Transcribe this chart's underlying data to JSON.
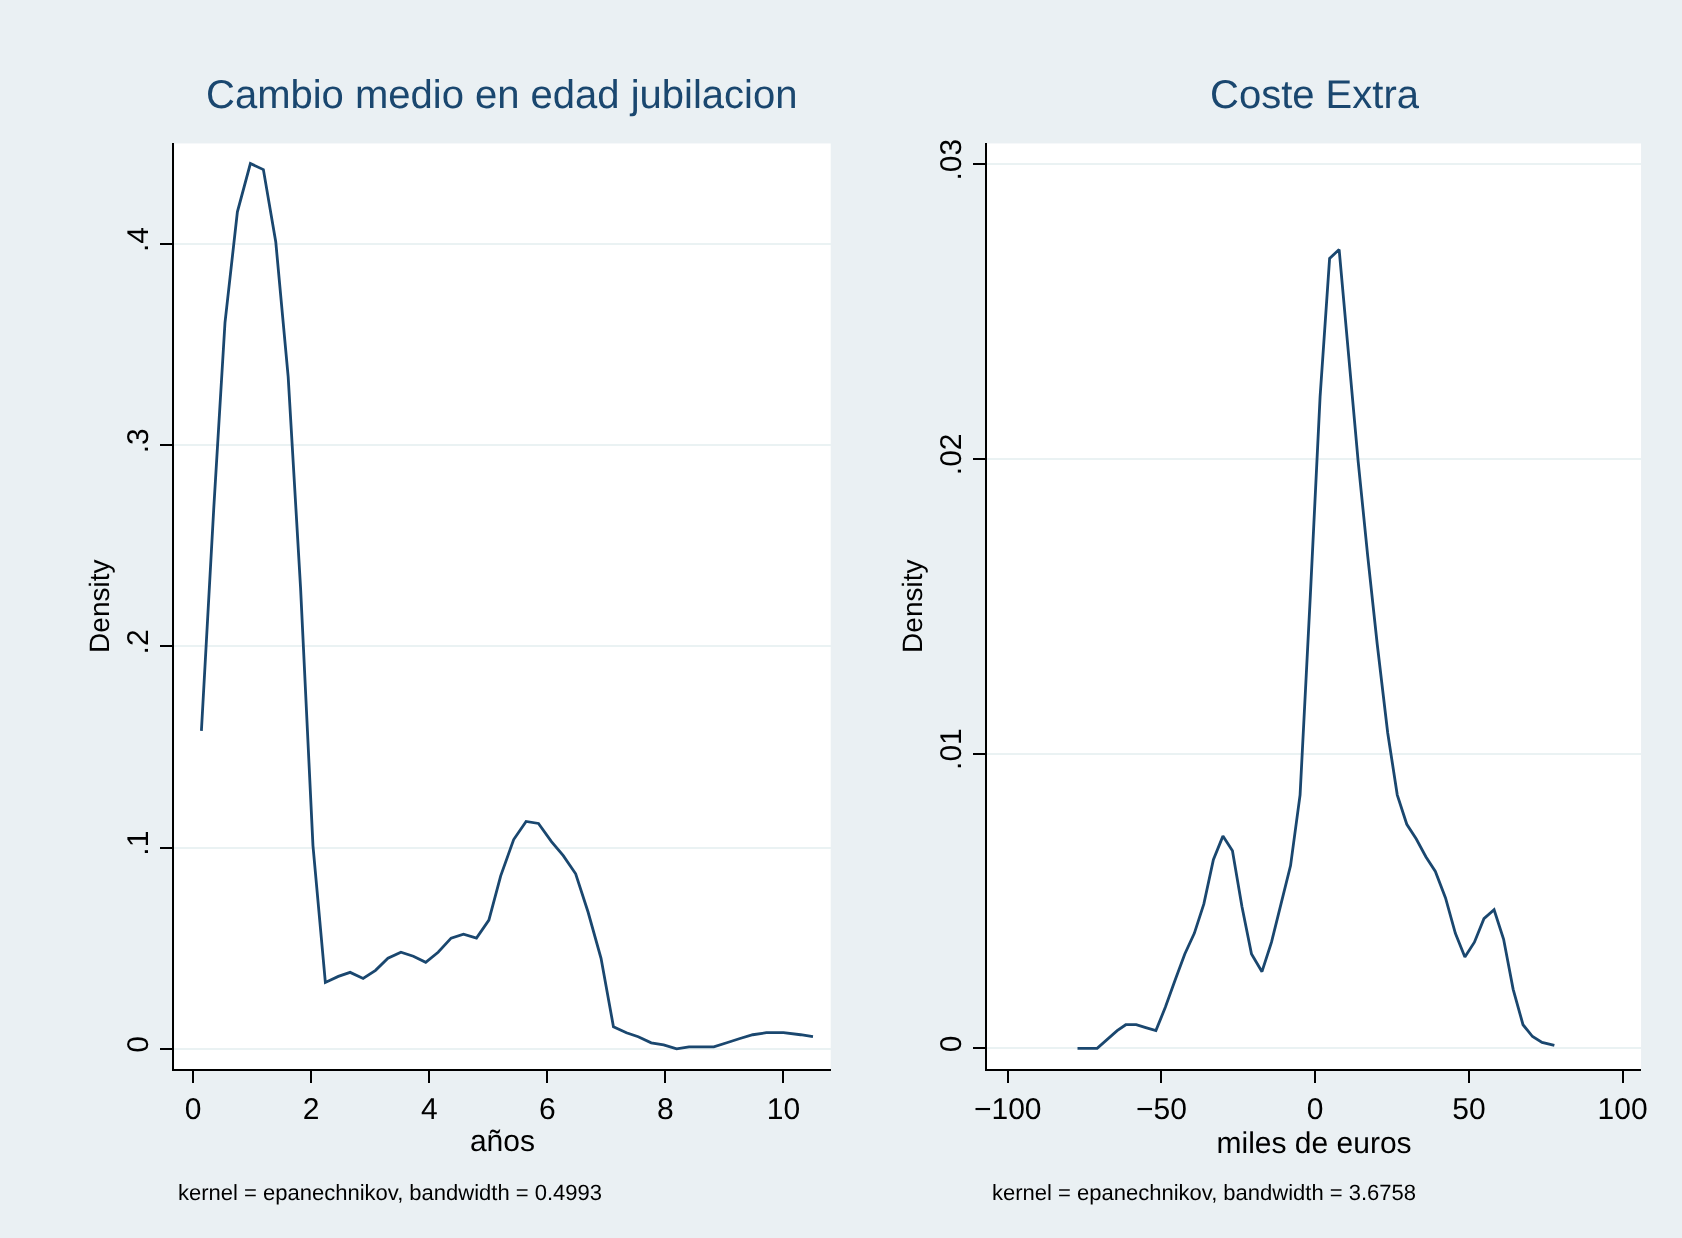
{
  "chart_data": [
    {
      "type": "line",
      "title": "Cambio medio en edad jubilacion",
      "xlabel": "años",
      "ylabel": "Density",
      "annotations": [
        "kernel = epanechnikov, bandwidth = 0.4993"
      ],
      "grid": "y",
      "marker": "none",
      "line_style": "solid",
      "xlim": [
        -0.32,
        10.8
      ],
      "ylim": [
        -0.01,
        0.45
      ],
      "xticks": [
        0,
        2,
        4,
        6,
        8,
        10
      ],
      "yticks": [
        {
          "value": 0,
          "label": "0"
        },
        {
          "value": 0.1,
          "label": ".1"
        },
        {
          "value": 0.2,
          "label": ".2"
        },
        {
          "value": 0.3,
          "label": ".3"
        },
        {
          "value": 0.4,
          "label": ".4"
        }
      ],
      "series": [
        {
          "color": "#1a476f",
          "x": [
            0.14,
            0.35,
            0.54,
            0.75,
            0.97,
            1.19,
            1.4,
            1.61,
            1.82,
            2.03,
            2.24,
            2.46,
            2.66,
            2.88,
            3.09,
            3.3,
            3.52,
            3.73,
            3.94,
            4.15,
            4.37,
            4.58,
            4.8,
            5.01,
            5.21,
            5.43,
            5.64,
            5.85,
            6.07,
            6.27,
            6.48,
            6.69,
            6.91,
            7.12,
            7.34,
            7.54,
            7.76,
            7.97,
            8.19,
            8.4,
            8.82,
            9.04,
            9.25,
            9.48,
            9.71,
            10.0,
            10.29,
            10.5
          ],
          "values": [
            0.158,
            0.269,
            0.361,
            0.416,
            0.44,
            0.437,
            0.401,
            0.334,
            0.229,
            0.101,
            0.033,
            0.036,
            0.038,
            0.035,
            0.039,
            0.045,
            0.048,
            0.046,
            0.043,
            0.048,
            0.055,
            0.057,
            0.055,
            0.064,
            0.086,
            0.104,
            0.113,
            0.112,
            0.103,
            0.096,
            0.087,
            0.068,
            0.045,
            0.011,
            0.008,
            0.006,
            0.003,
            0.002,
            0,
            0.001,
            0.001,
            0.003,
            0.005,
            0.007,
            0.008,
            0.008,
            0.007,
            0.006
          ]
        }
      ]
    },
    {
      "type": "line",
      "title": "Coste Extra",
      "xlabel": "miles de euros",
      "ylabel": "Density",
      "annotations": [
        "kernel = epanechnikov, bandwidth = 3.6758"
      ],
      "grid": "y",
      "marker": "none",
      "line_style": "solid",
      "xlim": [
        -106.7,
        106
      ],
      "ylim": [
        -0.0007,
        0.0307
      ],
      "xticks": [
        {
          "value": -100,
          "label": "−100"
        },
        {
          "value": -50,
          "label": "−50"
        },
        0,
        50,
        100
      ],
      "yticks": [
        {
          "value": 0,
          "label": "0"
        },
        {
          "value": 0.01,
          "label": ".01"
        },
        {
          "value": 0.02,
          "label": ".02"
        },
        {
          "value": 0.03,
          "label": ".03"
        }
      ],
      "series": [
        {
          "color": "#1a476f",
          "x": [
            -77.3,
            -70.9,
            -64.4,
            -61.6,
            -58.2,
            -55.1,
            -51.8,
            -48.7,
            -45.6,
            -42.4,
            -39.3,
            -36.2,
            -33.1,
            -30,
            -26.9,
            -23.8,
            -20.7,
            -17.3,
            -14.2,
            -11.1,
            -8,
            -4.9,
            -1.6,
            1.6,
            4.7,
            7.8,
            10.9,
            14,
            17.1,
            20.2,
            23.6,
            26.7,
            29.8,
            32.9,
            36,
            39.1,
            42.4,
            45.6,
            48.7,
            51.8,
            54.9,
            58.2,
            61.3,
            64.4,
            67.6,
            70.7,
            73.8,
            77.8
          ],
          "values": [
            0,
            0,
            0.0006,
            0.0008,
            0.0008,
            0.0007,
            0.0006,
            0.0014,
            0.0023,
            0.0032,
            0.0039,
            0.0049,
            0.0064,
            0.0072,
            0.0067,
            0.0048,
            0.0032,
            0.0026,
            0.0036,
            0.0049,
            0.0062,
            0.0086,
            0.0153,
            0.0221,
            0.0268,
            0.0271,
            0.0235,
            0.0199,
            0.0167,
            0.0137,
            0.0107,
            0.0086,
            0.0076,
            0.0071,
            0.0065,
            0.006,
            0.0051,
            0.0039,
            0.0031,
            0.0036,
            0.0044,
            0.0047,
            0.0037,
            0.002,
            0.0008,
            0.0004,
            0.0002,
            0.0001
          ]
        }
      ]
    }
  ]
}
